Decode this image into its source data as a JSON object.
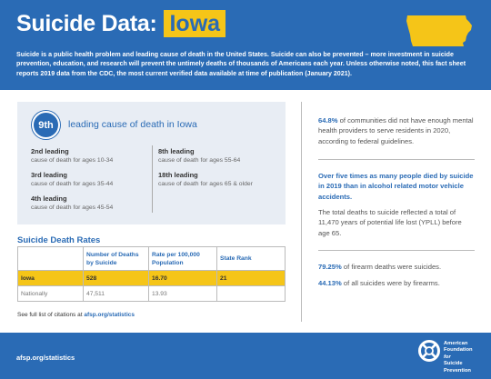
{
  "header": {
    "title": "Suicide Data:",
    "state": "Iowa",
    "intro": "Suicide is a public health problem and leading cause of death in the United States. Suicide can also be prevented – more investment in suicide prevention, education, and research will prevent the untimely deaths of thousands of Americans each year. Unless otherwise noted, this fact sheet reports 2019 data from the CDC, the most current verified data available at time of publication (January 2021)."
  },
  "leading": {
    "badge": "9th",
    "title": "leading cause of death in Iowa",
    "items": [
      {
        "rank": "2nd leading",
        "desc": "cause of death for ages 10-34"
      },
      {
        "rank": "3rd leading",
        "desc": "cause of death for ages 35-44"
      },
      {
        "rank": "4th leading",
        "desc": "cause of death for ages 45-54"
      },
      {
        "rank": "8th leading",
        "desc": "cause of death for ages 55-64"
      },
      {
        "rank": "18th leading",
        "desc": "cause of death for ages 65 & older"
      }
    ]
  },
  "rates": {
    "title": "Suicide Death Rates",
    "headers": [
      "",
      "Number of Deaths by Suicide",
      "Rate per 100,000 Population",
      "State Rank"
    ],
    "rows": [
      [
        "Iowa",
        "528",
        "16.70",
        "21"
      ],
      [
        "Nationally",
        "47,511",
        "13.93",
        ""
      ]
    ]
  },
  "citation": {
    "prefix": "See full list of citations at",
    "link": "afsp.org/statistics"
  },
  "right": {
    "stat1_pct": "64.8%",
    "stat1_text": "of communities did not have enough mental health providers to serve residents in 2020, according to federal guidelines.",
    "stat2_bold": "Over five times as many people died by suicide in 2019 than in alcohol related motor vehicle accidents.",
    "stat2_text": "The total deaths to suicide reflected a total of 11,470 years of potential life lost (YPLL) before age 65.",
    "stat3_pct": "79.25%",
    "stat3_text": "of firearm deaths were suicides.",
    "stat4_pct": "44.13%",
    "stat4_text": "of all suicides were by firearms."
  },
  "footer": {
    "url": "afsp.org/statistics",
    "org_line1": "American",
    "org_line2": "Foundation",
    "org_line3": "for",
    "org_line4": "Suicide",
    "org_line5": "Prevention"
  },
  "colors": {
    "brand_blue": "#2a6bb5",
    "accent_yellow": "#f5c518",
    "panel_gray": "#e8edf4"
  }
}
